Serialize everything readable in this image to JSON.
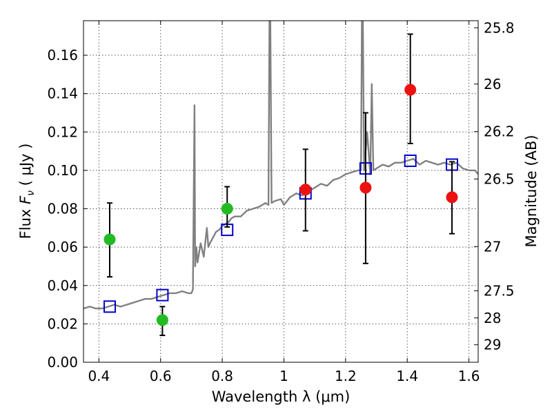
{
  "chart_data": {
    "type": "scatter",
    "xlabel": "Wavelength  λ (μm)",
    "ylabel": "Flux  Fν  ( μJy )",
    "ylabel_right": "Magnitude (AB)",
    "xlim": [
      0.35,
      1.63
    ],
    "ylim": [
      0.0,
      0.178
    ],
    "grid": true,
    "x_ticks": [
      {
        "value": 0.4,
        "label": "0.4"
      },
      {
        "value": 0.6,
        "label": "0.6"
      },
      {
        "value": 0.8,
        "label": "0.8"
      },
      {
        "value": 1.0,
        "label": "1"
      },
      {
        "value": 1.2,
        "label": "1.2"
      },
      {
        "value": 1.4,
        "label": "1.4"
      },
      {
        "value": 1.6,
        "label": "1.6"
      }
    ],
    "y_ticks": [
      {
        "value": 0.0,
        "label": "0.00"
      },
      {
        "value": 0.02,
        "label": "0.02"
      },
      {
        "value": 0.04,
        "label": "0.04"
      },
      {
        "value": 0.06,
        "label": "0.06"
      },
      {
        "value": 0.08,
        "label": "0.08"
      },
      {
        "value": 0.1,
        "label": "0.10"
      },
      {
        "value": 0.12,
        "label": "0.12"
      },
      {
        "value": 0.14,
        "label": "0.14"
      },
      {
        "value": 0.16,
        "label": "0.16"
      }
    ],
    "right_ticks": [
      {
        "flux": 0.1743,
        "label": "25.8"
      },
      {
        "flux": 0.145,
        "label": "26"
      },
      {
        "flux": 0.1202,
        "label": "26.2"
      },
      {
        "flux": 0.0955,
        "label": "26.5"
      },
      {
        "flux": 0.0603,
        "label": "27"
      },
      {
        "flux": 0.0372,
        "label": "27.5"
      },
      {
        "flux": 0.0231,
        "label": "28"
      },
      {
        "flux": 0.0091,
        "label": "29"
      }
    ],
    "series": [
      {
        "kind": "spectrum",
        "color": "#808080",
        "x": [
          0.35,
          0.37,
          0.39,
          0.41,
          0.43,
          0.45,
          0.47,
          0.49,
          0.51,
          0.53,
          0.55,
          0.57,
          0.59,
          0.61,
          0.63,
          0.65,
          0.67,
          0.69,
          0.7,
          0.705,
          0.71,
          0.712,
          0.716,
          0.72,
          0.73,
          0.74,
          0.75,
          0.755,
          0.76,
          0.77,
          0.78,
          0.79,
          0.8,
          0.81,
          0.82,
          0.83,
          0.84,
          0.86,
          0.88,
          0.9,
          0.92,
          0.94,
          0.95,
          0.953,
          0.956,
          0.96,
          0.97,
          0.99,
          1.0,
          1.02,
          1.04,
          1.06,
          1.08,
          1.1,
          1.12,
          1.14,
          1.16,
          1.18,
          1.2,
          1.22,
          1.24,
          1.25,
          1.253,
          1.256,
          1.26,
          1.27,
          1.28,
          1.285,
          1.29,
          1.3,
          1.32,
          1.34,
          1.36,
          1.38,
          1.4,
          1.42,
          1.44,
          1.46,
          1.48,
          1.5,
          1.52,
          1.54,
          1.56,
          1.58,
          1.6,
          1.62,
          1.63
        ],
        "y": [
          0.028,
          0.029,
          0.028,
          0.028,
          0.029,
          0.03,
          0.029,
          0.03,
          0.031,
          0.032,
          0.033,
          0.033,
          0.034,
          0.035,
          0.036,
          0.036,
          0.037,
          0.036,
          0.036,
          0.038,
          0.134,
          0.05,
          0.06,
          0.052,
          0.062,
          0.055,
          0.07,
          0.06,
          0.062,
          0.065,
          0.068,
          0.069,
          0.071,
          0.072,
          0.073,
          0.075,
          0.076,
          0.076,
          0.079,
          0.08,
          0.081,
          0.083,
          0.082,
          0.178,
          0.178,
          0.083,
          0.084,
          0.085,
          0.082,
          0.086,
          0.088,
          0.087,
          0.089,
          0.091,
          0.093,
          0.092,
          0.095,
          0.096,
          0.098,
          0.099,
          0.1,
          0.1,
          0.178,
          0.178,
          0.1,
          0.12,
          0.098,
          0.145,
          0.1,
          0.101,
          0.103,
          0.102,
          0.104,
          0.104,
          0.105,
          0.106,
          0.103,
          0.105,
          0.104,
          0.103,
          0.104,
          0.103,
          0.104,
          0.101,
          0.1,
          0.1,
          0.098
        ]
      },
      {
        "kind": "model-boxes",
        "color": "#0000cc",
        "x": [
          0.435,
          0.606,
          0.816,
          1.07,
          1.265,
          1.41,
          1.545
        ],
        "y": [
          0.029,
          0.035,
          0.069,
          0.088,
          0.101,
          0.105,
          0.103
        ]
      },
      {
        "kind": "photometry",
        "color": "#22bb22",
        "x": [
          0.435,
          0.606,
          0.816
        ],
        "y": [
          0.064,
          0.022,
          0.08
        ],
        "yerr_low": [
          0.0445,
          0.014,
          0.0705
        ],
        "yerr_high": [
          0.083,
          0.029,
          0.0915
        ]
      },
      {
        "kind": "photometry",
        "color": "#ee1111",
        "x": [
          1.07,
          1.265,
          1.41,
          1.545
        ],
        "y": [
          0.09,
          0.091,
          0.142,
          0.086
        ],
        "yerr_low": [
          0.0685,
          0.0515,
          0.114,
          0.067
        ],
        "yerr_high": [
          0.111,
          0.13,
          0.171,
          0.1045
        ]
      }
    ]
  }
}
